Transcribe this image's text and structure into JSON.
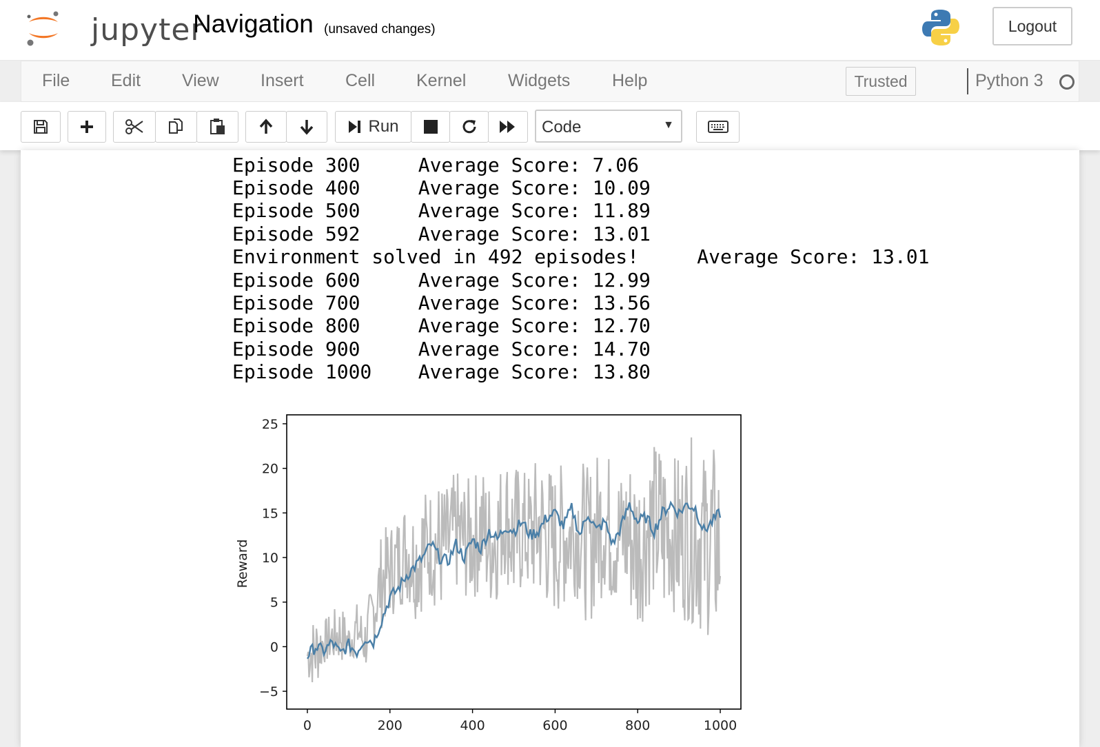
{
  "header": {
    "logo_text": "jupyter",
    "notebook_title": "Navigation",
    "save_status": "(unsaved changes)",
    "logout_label": "Logout"
  },
  "menubar": {
    "items": [
      "File",
      "Edit",
      "View",
      "Insert",
      "Cell",
      "Kernel",
      "Widgets",
      "Help"
    ],
    "trusted_label": "Trusted",
    "kernel_name": "Python 3"
  },
  "toolbar": {
    "run_label": "Run",
    "cell_type": "Code",
    "icons": [
      "save-icon",
      "plus-icon",
      "scissors-icon",
      "copy-icon",
      "paste-icon",
      "arrow-up-icon",
      "arrow-down-icon",
      "step-forward-icon",
      "stop-icon",
      "restart-icon",
      "fast-forward-icon",
      "keyboard-icon"
    ]
  },
  "output": {
    "lines": [
      "Episode 300     Average Score: 7.06",
      "Episode 400     Average Score: 10.09",
      "Episode 500     Average Score: 11.89",
      "Episode 592     Average Score: 13.01",
      "Environment solved in 492 episodes!     Average Score: 13.01",
      "Episode 600     Average Score: 12.99",
      "Episode 700     Average Score: 13.56",
      "Episode 800     Average Score: 12.70",
      "Episode 900     Average Score: 14.70",
      "Episode 1000    Average Score: 13.80"
    ]
  },
  "chart_data": {
    "type": "line",
    "title": "",
    "xlabel": "",
    "ylabel": "Reward",
    "xlim": [
      -50,
      1050
    ],
    "ylim": [
      -7,
      26
    ],
    "xticks": [
      0,
      200,
      400,
      600,
      800,
      1000
    ],
    "yticks": [
      -5,
      0,
      5,
      10,
      15,
      20,
      25
    ],
    "ytick_labels": [
      "−5",
      "0",
      "5",
      "10",
      "15",
      "20",
      "25"
    ],
    "grid": false,
    "series": [
      {
        "color": "#bbbbbb",
        "x": [
          0,
          20,
          40,
          60,
          80,
          100,
          120,
          140,
          160,
          180,
          200,
          220,
          240,
          260,
          280,
          300,
          320,
          340,
          360,
          380,
          400,
          420,
          440,
          460,
          480,
          500,
          520,
          540,
          560,
          580,
          600,
          620,
          640,
          660,
          680,
          700,
          720,
          740,
          760,
          780,
          800,
          820,
          840,
          860,
          880,
          900,
          920,
          940,
          960,
          980,
          1000
        ],
        "low": [
          -4,
          -5,
          -2,
          -2,
          -2,
          -2,
          -1,
          -3,
          0,
          2,
          3,
          4,
          5,
          3,
          4,
          5,
          3,
          5,
          6,
          5,
          5,
          6,
          4,
          5,
          8,
          3,
          6,
          5,
          5,
          4,
          3,
          4,
          6,
          5,
          2,
          4,
          6,
          4,
          5,
          3,
          1,
          4,
          5,
          1,
          5,
          2,
          3,
          2,
          1,
          1,
          -1
        ],
        "high": [
          2,
          4,
          3,
          4,
          5,
          3,
          5,
          4,
          8,
          13,
          14,
          15,
          17,
          16,
          18,
          18,
          19,
          18,
          20,
          19,
          19,
          21,
          19,
          20,
          22,
          21,
          20,
          20,
          22,
          21,
          20,
          21,
          19,
          22,
          20,
          22,
          23,
          21,
          20,
          22,
          21,
          22,
          23,
          24,
          21,
          22,
          23,
          24,
          22,
          23,
          22
        ]
      },
      {
        "color": "#4a7fa7",
        "x": [
          0,
          20,
          40,
          60,
          80,
          100,
          120,
          140,
          160,
          180,
          200,
          220,
          240,
          260,
          280,
          300,
          320,
          340,
          360,
          380,
          400,
          420,
          440,
          460,
          480,
          500,
          520,
          540,
          560,
          580,
          600,
          620,
          640,
          660,
          680,
          700,
          720,
          740,
          760,
          780,
          800,
          820,
          840,
          860,
          880,
          900,
          920,
          940,
          960,
          980,
          1000
        ],
        "y": [
          -1,
          0,
          -0.5,
          0.5,
          -0.8,
          0.2,
          -0.6,
          1,
          0.5,
          3,
          5.5,
          6.5,
          8,
          9,
          10,
          11.5,
          10,
          9.5,
          11.5,
          10,
          12,
          11,
          13,
          12,
          13.5,
          13,
          14,
          12.5,
          13,
          14.5,
          15,
          13.5,
          15.5,
          12.5,
          15,
          13,
          14,
          11.5,
          13.5,
          16,
          14,
          14.5,
          13,
          15,
          16,
          15,
          16,
          15.5,
          13,
          14,
          15
        ]
      }
    ]
  }
}
